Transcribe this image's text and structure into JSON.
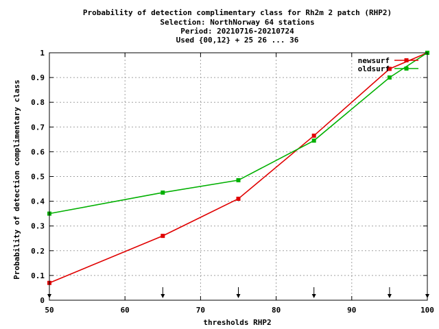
{
  "chart_data": {
    "type": "line",
    "title_lines": [
      "Probability of detection complimentary class  for Rh2m 2 patch (RHP2)",
      "Selection: NorthNorway     64 stations",
      "Period: 20210716-20210724",
      "Used {00,12} + 25 26 ... 36"
    ],
    "xlabel": "thresholds RHP2",
    "ylabel": "Probability of detection complimentary class",
    "xlim": [
      50,
      100
    ],
    "ylim": [
      0,
      1
    ],
    "x_ticks": [
      50,
      60,
      70,
      80,
      90,
      100
    ],
    "y_ticks": [
      0,
      0.1,
      0.2,
      0.3,
      0.4,
      0.5,
      0.6,
      0.7,
      0.8,
      0.9,
      1
    ],
    "x_tick_labels": [
      "50",
      "60",
      "70",
      "80",
      "90",
      "100"
    ],
    "y_tick_labels": [
      "0",
      "0.1",
      "0.2",
      "0.3",
      "0.4",
      "0.5",
      "0.6",
      "0.7",
      "0.8",
      "0.9",
      "1"
    ],
    "grid": true,
    "legend_position": "top-right",
    "threshold_arrows": [
      50,
      65,
      75,
      85,
      95,
      100
    ],
    "x": [
      50,
      65,
      75,
      85,
      95,
      100
    ],
    "series": [
      {
        "name": "newsurf",
        "color": "#e00000",
        "values": [
          0.07,
          0.26,
          0.41,
          0.665,
          0.935,
          1.0
        ]
      },
      {
        "name": "oldsurf",
        "color": "#00b000",
        "values": [
          0.35,
          0.435,
          0.485,
          0.645,
          0.9,
          1.0
        ]
      }
    ]
  }
}
